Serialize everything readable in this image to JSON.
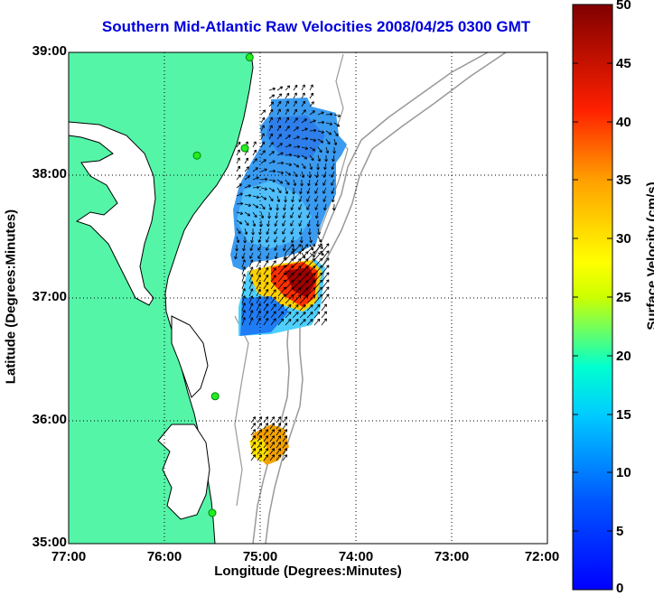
{
  "title": "Southern Mid-Atlantic Raw Velocities 2008/04/25 0300 GMT",
  "x_axis": {
    "label": "Longitude (Degrees:Minutes)",
    "ticks": [
      "77:00",
      "76:00",
      "75:00",
      "74:00",
      "73:00",
      "72:00"
    ]
  },
  "y_axis": {
    "label": "Latitude (Degrees:Minutes)",
    "ticks": [
      "39:00",
      "38:00",
      "37:00",
      "36:00",
      "35:00"
    ]
  },
  "colorbar": {
    "label": "Surface Velocity (cm/s)",
    "min": 0,
    "max": 50,
    "ticks": [
      "50",
      "45",
      "40",
      "35",
      "30",
      "25",
      "20",
      "15",
      "10",
      "5",
      "0"
    ]
  },
  "colors": {
    "land": "#55f5a8",
    "coast": "#000000",
    "bathymetry": "#999999",
    "title": "#0000dd",
    "station": "#22ee22"
  },
  "map_extent": {
    "lon_west": -77,
    "lon_east": -72,
    "lat_south": 35,
    "lat_north": 39
  },
  "stations": [
    {
      "lon": -75.11,
      "lat": 38.96
    },
    {
      "lon": -75.16,
      "lat": 38.22
    },
    {
      "lon": -75.66,
      "lat": 38.16
    },
    {
      "lon": -75.47,
      "lat": 36.2
    },
    {
      "lon": -75.5,
      "lat": 35.25
    }
  ]
}
